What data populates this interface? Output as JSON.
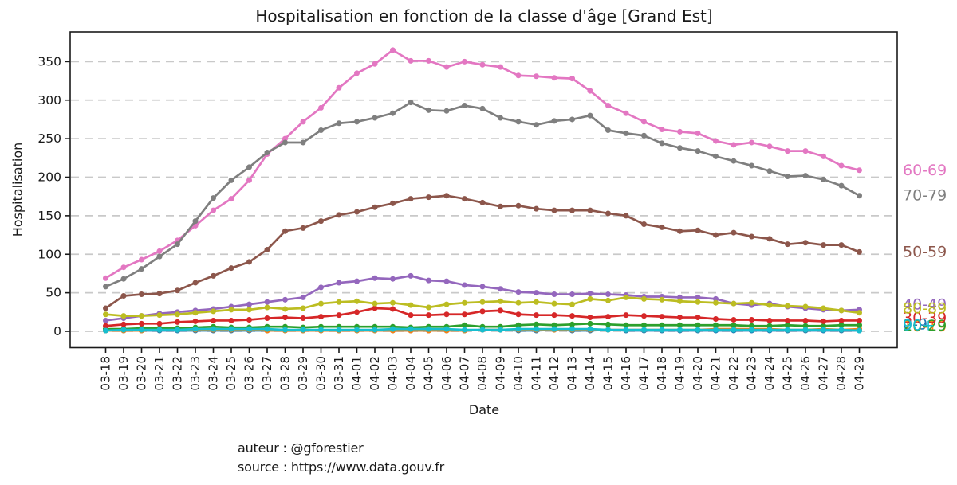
{
  "title": "Hospitalisation en fonction de la classe d'âge [Grand Est]",
  "footer": {
    "author_line": "auteur : @gforestier",
    "source_line": "source : https://www.data.gouv.fr"
  },
  "colors": {
    "background": "#ffffff",
    "axis": "#1a1a1a",
    "grid": "#c9c9c9",
    "text": "#1a1a1a"
  },
  "chart_data": {
    "type": "line",
    "title": "Hospitalisation en fonction de la classe d'âge [Grand Est]",
    "xlabel": "Date",
    "ylabel": "Hospitalisation",
    "ylim": [
      -20,
      390
    ],
    "yticks": [
      0,
      50,
      100,
      150,
      200,
      250,
      300,
      350
    ],
    "grid": "horizontal dashed",
    "legend_position": "right edge, colored labels at line ends",
    "markers": "filled circles on every point",
    "categories": [
      "03-18",
      "03-19",
      "03-20",
      "03-21",
      "03-22",
      "03-23",
      "03-24",
      "03-25",
      "03-26",
      "03-27",
      "03-28",
      "03-29",
      "03-30",
      "03-31",
      "04-01",
      "04-02",
      "04-03",
      "04-04",
      "04-05",
      "04-06",
      "04-07",
      "04-08",
      "04-09",
      "04-10",
      "04-11",
      "04-12",
      "04-13",
      "04-14",
      "04-15",
      "04-16",
      "04-17",
      "04-18",
      "04-19",
      "04-20",
      "04-21",
      "04-22",
      "04-23",
      "04-24",
      "04-25",
      "04-26",
      "04-27",
      "04-28",
      "04-29"
    ],
    "series": [
      {
        "name": "0-9",
        "color": "#1f77b4",
        "label_v": 9,
        "values": [
          1,
          1,
          1,
          1,
          1,
          1,
          1,
          1,
          1,
          1,
          1,
          1,
          1,
          1,
          1,
          1,
          1,
          1,
          1,
          1,
          1,
          2,
          2,
          1,
          1,
          2,
          1,
          1,
          2,
          1,
          1,
          1,
          1,
          1,
          1,
          1,
          1,
          1,
          1,
          1,
          1,
          1,
          1
        ]
      },
      {
        "name": "10-19",
        "color": "#ff7f0e",
        "label_v": 6,
        "values": [
          1,
          1,
          1,
          2,
          2,
          2,
          2,
          2,
          2,
          1,
          1,
          1,
          1,
          1,
          1,
          1,
          1,
          1,
          1,
          1,
          1,
          2,
          2,
          2,
          2,
          2,
          2,
          2,
          2,
          2,
          2,
          2,
          2,
          2,
          3,
          3,
          3,
          3,
          2,
          2,
          3,
          2,
          3
        ]
      },
      {
        "name": "20-29",
        "color": "#2ca02c",
        "label_v": 7,
        "values": [
          3,
          3,
          4,
          4,
          4,
          5,
          6,
          5,
          5,
          6,
          6,
          5,
          6,
          6,
          6,
          6,
          6,
          5,
          6,
          6,
          8,
          6,
          6,
          8,
          9,
          8,
          9,
          10,
          9,
          8,
          8,
          8,
          8,
          8,
          8,
          8,
          7,
          7,
          8,
          7,
          7,
          8,
          8
        ]
      },
      {
        "name": "30-39",
        "color": "#d62728",
        "label_v": 17,
        "values": [
          7,
          9,
          10,
          10,
          12,
          13,
          14,
          14,
          15,
          17,
          18,
          17,
          19,
          21,
          25,
          30,
          29,
          21,
          21,
          22,
          22,
          26,
          27,
          22,
          21,
          21,
          20,
          18,
          19,
          21,
          20,
          19,
          18,
          18,
          16,
          15,
          15,
          14,
          14,
          14,
          13,
          14,
          14
        ]
      },
      {
        "name": "40-49",
        "color": "#9467bd",
        "label_v": 34.5,
        "values": [
          14,
          17,
          20,
          23,
          25,
          27,
          29,
          32,
          35,
          38,
          41,
          44,
          57,
          63,
          65,
          69,
          68,
          72,
          66,
          65,
          60,
          58,
          55,
          51,
          50,
          48,
          48,
          49,
          48,
          47,
          45,
          45,
          44,
          44,
          42,
          36,
          34,
          36,
          32,
          30,
          28,
          27,
          28
        ]
      },
      {
        "name": "50-59",
        "color": "#8c564b",
        "label_v": 103,
        "values": [
          30,
          46,
          48,
          49,
          53,
          63,
          72,
          82,
          90,
          106,
          130,
          134,
          143,
          151,
          155,
          161,
          166,
          172,
          174,
          176,
          172,
          167,
          162,
          163,
          159,
          157,
          157,
          157,
          153,
          150,
          139,
          135,
          130,
          131,
          125,
          128,
          123,
          120,
          113,
          115,
          112,
          112,
          103
        ]
      },
      {
        "name": "60-69",
        "color": "#e377c2",
        "label_v": 209,
        "values": [
          69,
          83,
          93,
          104,
          118,
          137,
          157,
          172,
          196,
          230,
          250,
          272,
          290,
          316,
          335,
          347,
          365,
          351,
          351,
          343,
          350,
          346,
          343,
          332,
          331,
          329,
          328,
          312,
          293,
          283,
          272,
          262,
          259,
          257,
          247,
          242,
          245,
          240,
          234,
          234,
          227,
          215,
          209
        ]
      },
      {
        "name": "70-79",
        "color": "#7f7f7f",
        "label_v": 176,
        "values": [
          58,
          68,
          81,
          97,
          113,
          143,
          173,
          196,
          213,
          232,
          245,
          245,
          261,
          270,
          272,
          277,
          283,
          297,
          287,
          286,
          293,
          289,
          277,
          272,
          268,
          273,
          275,
          280,
          261,
          257,
          254,
          244,
          238,
          234,
          227,
          221,
          215,
          208,
          201,
          202,
          197,
          189,
          176
        ]
      },
      {
        "name": "80-89",
        "color": "#bcbd22",
        "label_v": 29.5,
        "values": [
          22,
          20,
          20,
          21,
          22,
          24,
          26,
          28,
          28,
          31,
          29,
          30,
          36,
          38,
          39,
          36,
          37,
          34,
          31,
          35,
          37,
          38,
          39,
          37,
          38,
          36,
          35,
          42,
          40,
          44,
          42,
          41,
          39,
          38,
          37,
          36,
          37,
          34,
          33,
          32,
          30,
          27,
          24
        ]
      },
      {
        "name": "90+",
        "color": "#17becf",
        "label_v": 8,
        "values": [
          1,
          2,
          2,
          2,
          2,
          3,
          3,
          3,
          3,
          3,
          2,
          2,
          2,
          2,
          2,
          2,
          3,
          3,
          3,
          3,
          2,
          2,
          2,
          3,
          3,
          3,
          3,
          3,
          2,
          2,
          2,
          2,
          2,
          2,
          2,
          2,
          2,
          2,
          2,
          2,
          2,
          2,
          1
        ]
      }
    ]
  }
}
